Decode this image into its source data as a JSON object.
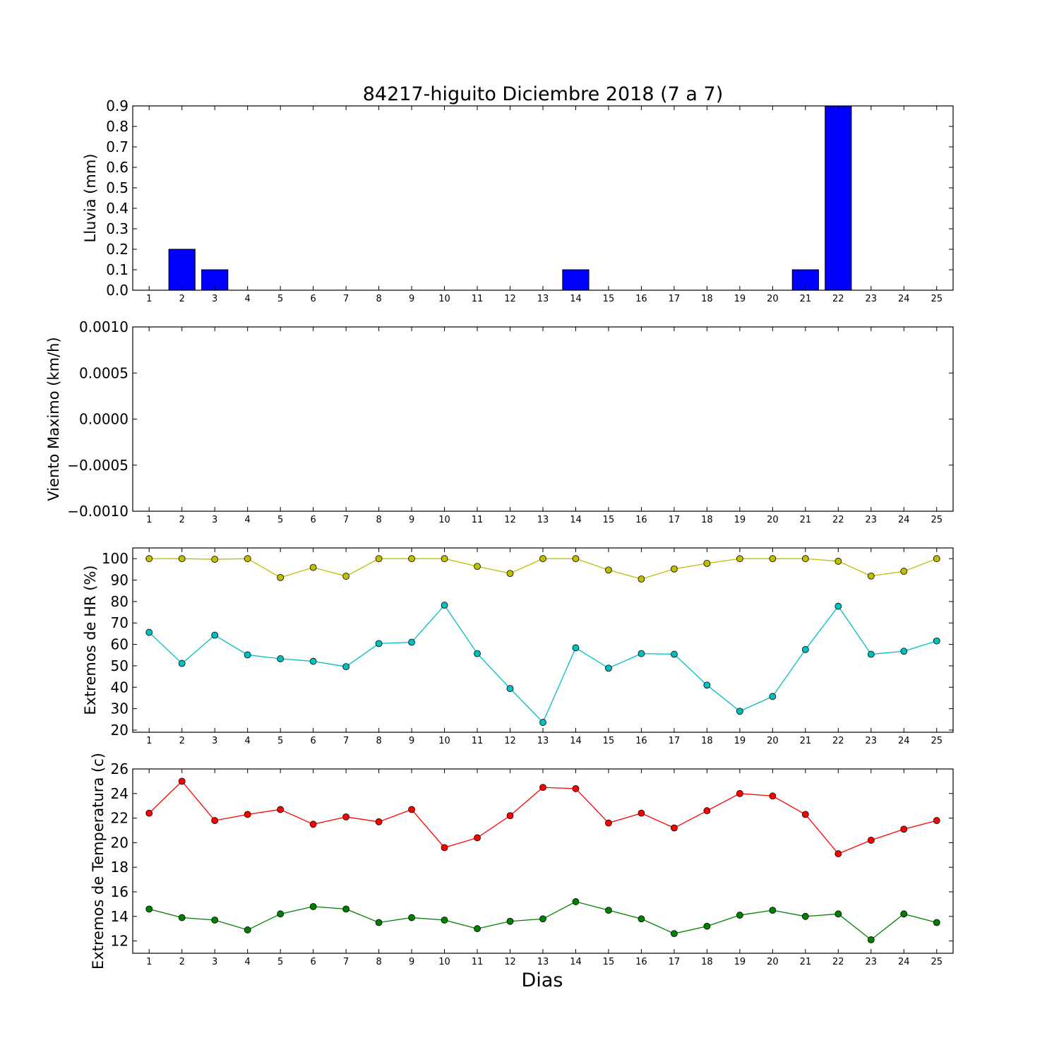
{
  "chart_data": [
    {
      "type": "bar",
      "title": "84217-higuito Diciembre 2018  (7 a 7)",
      "ylabel": "Lluvia (mm)",
      "xlabel": "",
      "categories": [
        1,
        2,
        3,
        4,
        5,
        6,
        7,
        8,
        9,
        10,
        11,
        12,
        13,
        14,
        15,
        16,
        17,
        18,
        19,
        20,
        21,
        22,
        23,
        24,
        25
      ],
      "values": [
        0,
        0.2,
        0.1,
        0,
        0,
        0,
        0,
        0,
        0,
        0,
        0,
        0,
        0,
        0.1,
        0,
        0,
        0,
        0,
        0,
        0,
        0.1,
        0.9,
        0,
        0,
        0
      ],
      "ylim": [
        0,
        0.9
      ],
      "yticks": [
        "0.0",
        "0.1",
        "0.2",
        "0.3",
        "0.4",
        "0.5",
        "0.6",
        "0.7",
        "0.8",
        "0.9"
      ],
      "color": "#0000ff",
      "grid": false
    },
    {
      "type": "line",
      "title": "",
      "ylabel": "Viento Maximo (km/h)",
      "xlabel": "",
      "categories": [
        1,
        2,
        3,
        4,
        5,
        6,
        7,
        8,
        9,
        10,
        11,
        12,
        13,
        14,
        15,
        16,
        17,
        18,
        19,
        20,
        21,
        22,
        23,
        24,
        25
      ],
      "series": [],
      "ylim": [
        -0.001,
        0.001
      ],
      "yticks": [
        "−0.0010",
        "−0.0005",
        "0.0000",
        "0.0005",
        "0.0010"
      ],
      "grid": false
    },
    {
      "type": "line",
      "title": "",
      "ylabel": "Extremos de HR (%)",
      "xlabel": "",
      "categories": [
        1,
        2,
        3,
        4,
        5,
        6,
        7,
        8,
        9,
        10,
        11,
        12,
        13,
        14,
        15,
        16,
        17,
        18,
        19,
        20,
        21,
        22,
        23,
        24,
        25
      ],
      "series": [
        {
          "values": [
            100,
            100,
            99.7,
            100,
            91.2,
            95.9,
            91.8,
            100,
            100,
            100,
            96.4,
            93.1,
            100,
            100,
            94.7,
            90.5,
            95.2,
            97.8,
            100,
            100,
            100,
            98.8,
            91.9,
            94.1,
            100
          ],
          "color": "#bfbf00"
        },
        {
          "values": [
            65.6,
            51.1,
            64.3,
            55.1,
            53.3,
            52.1,
            49.6,
            60.4,
            61.0,
            78.3,
            55.7,
            39.4,
            23.6,
            58.4,
            48.9,
            55.7,
            55.4,
            41.0,
            28.8,
            35.7,
            57.6,
            77.8,
            55.4,
            56.8,
            61.6
          ],
          "color": "#00bfbf"
        }
      ],
      "ylim": [
        19,
        105
      ],
      "yticks": [
        "20",
        "30",
        "40",
        "50",
        "60",
        "70",
        "80",
        "90",
        "100"
      ],
      "grid": false
    },
    {
      "type": "line",
      "title": "",
      "ylabel": "Extremos de Temperatura (c)",
      "xlabel": "Dias",
      "categories": [
        1,
        2,
        3,
        4,
        5,
        6,
        7,
        8,
        9,
        10,
        11,
        12,
        13,
        14,
        15,
        16,
        17,
        18,
        19,
        20,
        21,
        22,
        23,
        24,
        25
      ],
      "series": [
        {
          "values": [
            22.4,
            25.0,
            21.8,
            22.3,
            22.7,
            21.5,
            22.1,
            21.7,
            22.7,
            19.6,
            20.4,
            22.2,
            24.5,
            24.4,
            21.6,
            22.4,
            21.2,
            22.6,
            24.0,
            23.8,
            22.3,
            19.1,
            20.2,
            21.1,
            21.8
          ],
          "color": "#ff0000"
        },
        {
          "values": [
            14.6,
            13.9,
            13.7,
            12.9,
            14.2,
            14.8,
            14.6,
            13.5,
            13.9,
            13.7,
            13.0,
            13.6,
            13.8,
            15.2,
            14.5,
            13.8,
            12.6,
            13.2,
            14.1,
            14.5,
            14.0,
            14.2,
            12.1,
            14.2,
            13.5
          ],
          "color": "#008000"
        }
      ],
      "ylim": [
        11,
        26
      ],
      "yticks": [
        "12",
        "14",
        "16",
        "18",
        "20",
        "22",
        "24",
        "26"
      ],
      "grid": false
    }
  ]
}
